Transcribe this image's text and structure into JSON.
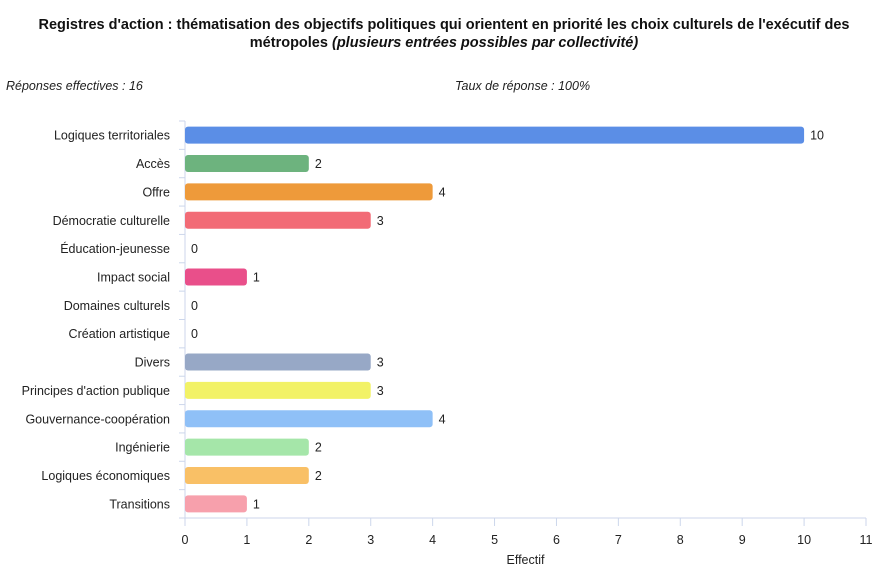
{
  "chart_data": {
    "type": "bar",
    "orientation": "horizontal",
    "title_main": "Registres d'action : thématisation des objectifs politiques qui orientent en priorité les choix culturels de l'exécutif des métropoles",
    "title_sub": "(plusieurs entrées possibles par collectivité)",
    "categories": [
      "Logiques territoriales",
      "Accès",
      "Offre",
      "Démocratie culturelle",
      "Éducation-jeunesse",
      "Impact social",
      "Domaines culturels",
      "Création artistique",
      "Divers",
      "Principes d'action publique",
      "Gouvernance-coopération",
      "Ingénierie",
      "Logiques économiques",
      "Transitions"
    ],
    "values": [
      10,
      2,
      4,
      3,
      0,
      1,
      0,
      0,
      3,
      3,
      4,
      2,
      2,
      1
    ],
    "colors": [
      "#5b8ee6",
      "#6db37e",
      "#ee9a3a",
      "#f26b76",
      "#ffffff",
      "#e94f8a",
      "#ffffff",
      "#ffffff",
      "#97a8c6",
      "#f2f266",
      "#8fc0f7",
      "#a5e6a9",
      "#f9c066",
      "#f7a0ac"
    ],
    "xlabel": "Effectif",
    "ylabel": "",
    "xlim": [
      0,
      11
    ],
    "xticks": [
      0,
      1,
      2,
      3,
      4,
      5,
      6,
      7,
      8,
      9,
      10,
      11
    ],
    "grid": false
  },
  "annotations": {
    "left": "Réponses effectives : 16",
    "right": "Taux de réponse : 100%"
  }
}
